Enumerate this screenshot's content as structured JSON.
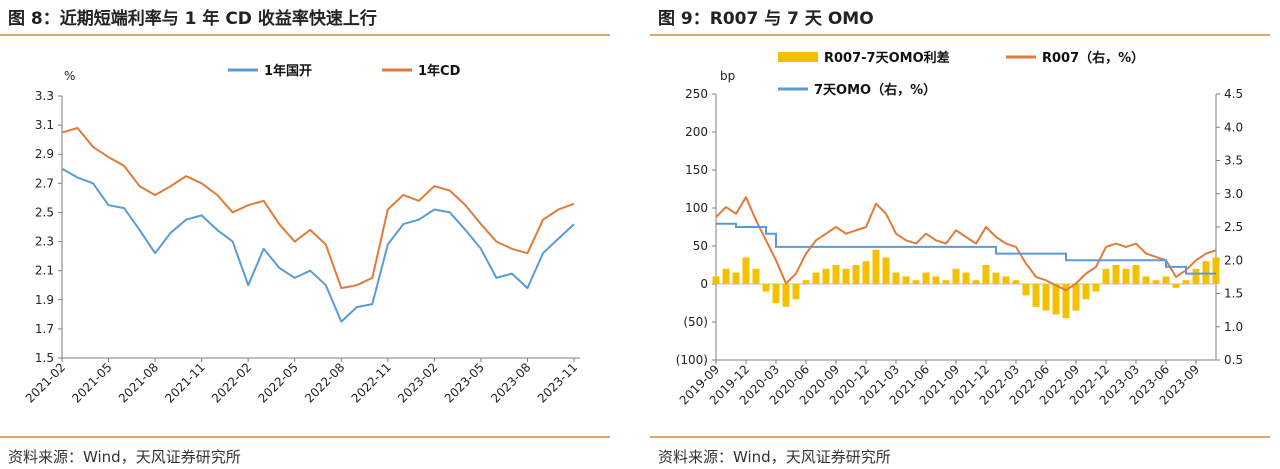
{
  "left_panel": {
    "title": "图 8：近期短端利率与 1 年 CD 收益率快速上行",
    "source": "资料来源：Wind，天风证券研究所"
  },
  "right_panel": {
    "title": "图 9：R007 与 7 天 OMO",
    "source": "资料来源：Wind，天风证券研究所"
  },
  "chart_data": [
    {
      "type": "line",
      "unit_label": "%",
      "ylim": [
        1.5,
        3.3
      ],
      "yticks": [
        "3.3",
        "3.1",
        "2.9",
        "2.7",
        "2.5",
        "2.3",
        "2.1",
        "1.9",
        "1.7",
        "1.5"
      ],
      "xticks": [
        "2021-02",
        "2021-05",
        "2021-08",
        "2021-11",
        "2022-02",
        "2022-05",
        "2022-08",
        "2022-11",
        "2023-02",
        "2023-05",
        "2023-08",
        "2023-11"
      ],
      "legend_position": "top",
      "series": [
        {
          "name": "1年国开",
          "color": "#5b9bd5",
          "points": [
            [
              "2021-02",
              2.8
            ],
            [
              "2021-03",
              2.74
            ],
            [
              "2021-04",
              2.7
            ],
            [
              "2021-05",
              2.55
            ],
            [
              "2021-06",
              2.53
            ],
            [
              "2021-07",
              2.38
            ],
            [
              "2021-08",
              2.22
            ],
            [
              "2021-09",
              2.36
            ],
            [
              "2021-10",
              2.45
            ],
            [
              "2021-11",
              2.48
            ],
            [
              "2021-12",
              2.38
            ],
            [
              "2022-01",
              2.3
            ],
            [
              "2022-02",
              2.0
            ],
            [
              "2022-03",
              2.25
            ],
            [
              "2022-04",
              2.12
            ],
            [
              "2022-05",
              2.05
            ],
            [
              "2022-06",
              2.1
            ],
            [
              "2022-07",
              2.0
            ],
            [
              "2022-08",
              1.75
            ],
            [
              "2022-09",
              1.85
            ],
            [
              "2022-10",
              1.87
            ],
            [
              "2022-11",
              2.28
            ],
            [
              "2022-12",
              2.42
            ],
            [
              "2023-01",
              2.45
            ],
            [
              "2023-02",
              2.52
            ],
            [
              "2023-03",
              2.5
            ],
            [
              "2023-04",
              2.38
            ],
            [
              "2023-05",
              2.25
            ],
            [
              "2023-06",
              2.05
            ],
            [
              "2023-07",
              2.08
            ],
            [
              "2023-08",
              1.98
            ],
            [
              "2023-09",
              2.22
            ],
            [
              "2023-10",
              2.32
            ],
            [
              "2023-11",
              2.42
            ]
          ]
        },
        {
          "name": "1年CD",
          "color": "#e07b39",
          "points": [
            [
              "2021-02",
              3.05
            ],
            [
              "2021-03",
              3.08
            ],
            [
              "2021-04",
              2.95
            ],
            [
              "2021-05",
              2.88
            ],
            [
              "2021-06",
              2.82
            ],
            [
              "2021-07",
              2.68
            ],
            [
              "2021-08",
              2.62
            ],
            [
              "2021-09",
              2.68
            ],
            [
              "2021-10",
              2.75
            ],
            [
              "2021-11",
              2.7
            ],
            [
              "2021-12",
              2.62
            ],
            [
              "2022-01",
              2.5
            ],
            [
              "2022-02",
              2.55
            ],
            [
              "2022-03",
              2.58
            ],
            [
              "2022-04",
              2.42
            ],
            [
              "2022-05",
              2.3
            ],
            [
              "2022-06",
              2.38
            ],
            [
              "2022-07",
              2.28
            ],
            [
              "2022-08",
              1.98
            ],
            [
              "2022-09",
              2.0
            ],
            [
              "2022-10",
              2.05
            ],
            [
              "2022-11",
              2.52
            ],
            [
              "2022-12",
              2.62
            ],
            [
              "2023-01",
              2.58
            ],
            [
              "2023-02",
              2.68
            ],
            [
              "2023-03",
              2.65
            ],
            [
              "2023-04",
              2.55
            ],
            [
              "2023-05",
              2.42
            ],
            [
              "2023-06",
              2.3
            ],
            [
              "2023-07",
              2.25
            ],
            [
              "2023-08",
              2.22
            ],
            [
              "2023-09",
              2.45
            ],
            [
              "2023-10",
              2.52
            ],
            [
              "2023-11",
              2.56
            ]
          ]
        }
      ]
    },
    {
      "type": "bar+line",
      "left_unit_label": "bp",
      "left_ylim": [
        -100,
        250
      ],
      "left_yticks": [
        "250",
        "200",
        "150",
        "100",
        "50",
        "0",
        "(50)",
        "(100)"
      ],
      "right_ylim": [
        0.5,
        4.5
      ],
      "right_yticks": [
        "4.5",
        "4.0",
        "3.5",
        "3.0",
        "2.5",
        "2.0",
        "1.5",
        "1.0",
        "0.5"
      ],
      "xticks": [
        "2019-09",
        "2019-12",
        "2020-03",
        "2020-06",
        "2020-09",
        "2020-12",
        "2021-03",
        "2021-06",
        "2021-09",
        "2021-12",
        "2022-03",
        "2022-06",
        "2022-09",
        "2022-12",
        "2023-03",
        "2023-06",
        "2023-09"
      ],
      "legend_position": "top",
      "series": [
        {
          "name": "R007-7天OMO利差",
          "axis": "left",
          "kind": "bar",
          "color": "#f5c000",
          "points": [
            [
              "2019-09",
              10
            ],
            [
              "2019-10",
              20
            ],
            [
              "2019-11",
              15
            ],
            [
              "2019-12",
              35
            ],
            [
              "2020-01",
              20
            ],
            [
              "2020-02",
              -10
            ],
            [
              "2020-03",
              -25
            ],
            [
              "2020-04",
              -30
            ],
            [
              "2020-05",
              -20
            ],
            [
              "2020-06",
              5
            ],
            [
              "2020-07",
              15
            ],
            [
              "2020-08",
              20
            ],
            [
              "2020-09",
              25
            ],
            [
              "2020-10",
              20
            ],
            [
              "2020-11",
              25
            ],
            [
              "2020-12",
              30
            ],
            [
              "2021-01",
              45
            ],
            [
              "2021-02",
              35
            ],
            [
              "2021-03",
              15
            ],
            [
              "2021-04",
              10
            ],
            [
              "2021-05",
              5
            ],
            [
              "2021-06",
              15
            ],
            [
              "2021-07",
              10
            ],
            [
              "2021-08",
              5
            ],
            [
              "2021-09",
              20
            ],
            [
              "2021-10",
              15
            ],
            [
              "2021-11",
              5
            ],
            [
              "2021-12",
              25
            ],
            [
              "2022-01",
              15
            ],
            [
              "2022-02",
              10
            ],
            [
              "2022-03",
              5
            ],
            [
              "2022-04",
              -15
            ],
            [
              "2022-05",
              -30
            ],
            [
              "2022-06",
              -35
            ],
            [
              "2022-07",
              -40
            ],
            [
              "2022-08",
              -45
            ],
            [
              "2022-09",
              -35
            ],
            [
              "2022-10",
              -20
            ],
            [
              "2022-11",
              -10
            ],
            [
              "2022-12",
              20
            ],
            [
              "2023-01",
              25
            ],
            [
              "2023-02",
              20
            ],
            [
              "2023-03",
              25
            ],
            [
              "2023-04",
              10
            ],
            [
              "2023-05",
              5
            ],
            [
              "2023-06",
              10
            ],
            [
              "2023-07",
              -5
            ],
            [
              "2023-08",
              5
            ],
            [
              "2023-09",
              20
            ],
            [
              "2023-10",
              30
            ],
            [
              "2023-11",
              35
            ]
          ]
        },
        {
          "name": "R007（右，%）",
          "axis": "right",
          "kind": "line",
          "color": "#e07b39",
          "points": [
            [
              "2019-09",
              2.65
            ],
            [
              "2019-10",
              2.8
            ],
            [
              "2019-11",
              2.7
            ],
            [
              "2019-12",
              2.95
            ],
            [
              "2020-01",
              2.6
            ],
            [
              "2020-02",
              2.3
            ],
            [
              "2020-03",
              2.0
            ],
            [
              "2020-04",
              1.65
            ],
            [
              "2020-05",
              1.8
            ],
            [
              "2020-06",
              2.1
            ],
            [
              "2020-07",
              2.3
            ],
            [
              "2020-08",
              2.4
            ],
            [
              "2020-09",
              2.5
            ],
            [
              "2020-10",
              2.4
            ],
            [
              "2020-11",
              2.45
            ],
            [
              "2020-12",
              2.5
            ],
            [
              "2021-01",
              2.85
            ],
            [
              "2021-02",
              2.7
            ],
            [
              "2021-03",
              2.4
            ],
            [
              "2021-04",
              2.3
            ],
            [
              "2021-05",
              2.25
            ],
            [
              "2021-06",
              2.4
            ],
            [
              "2021-07",
              2.3
            ],
            [
              "2021-08",
              2.25
            ],
            [
              "2021-09",
              2.45
            ],
            [
              "2021-10",
              2.35
            ],
            [
              "2021-11",
              2.25
            ],
            [
              "2021-12",
              2.5
            ],
            [
              "2022-01",
              2.35
            ],
            [
              "2022-02",
              2.25
            ],
            [
              "2022-03",
              2.2
            ],
            [
              "2022-04",
              1.95
            ],
            [
              "2022-05",
              1.75
            ],
            [
              "2022-06",
              1.7
            ],
            [
              "2022-07",
              1.62
            ],
            [
              "2022-08",
              1.55
            ],
            [
              "2022-09",
              1.65
            ],
            [
              "2022-10",
              1.8
            ],
            [
              "2022-11",
              1.9
            ],
            [
              "2022-12",
              2.2
            ],
            [
              "2023-01",
              2.25
            ],
            [
              "2023-02",
              2.2
            ],
            [
              "2023-03",
              2.25
            ],
            [
              "2023-04",
              2.1
            ],
            [
              "2023-05",
              2.05
            ],
            [
              "2023-06",
              2.0
            ],
            [
              "2023-07",
              1.75
            ],
            [
              "2023-08",
              1.85
            ],
            [
              "2023-09",
              2.0
            ],
            [
              "2023-10",
              2.1
            ],
            [
              "2023-11",
              2.15
            ]
          ]
        },
        {
          "name": "7天OMO（右，%）",
          "axis": "right",
          "kind": "step",
          "color": "#5b9bd5",
          "points": [
            [
              "2019-09",
              2.55
            ],
            [
              "2019-11",
              2.5
            ],
            [
              "2020-02",
              2.4
            ],
            [
              "2020-03",
              2.2
            ],
            [
              "2022-01",
              2.1
            ],
            [
              "2022-08",
              2.0
            ],
            [
              "2023-06",
              1.9
            ],
            [
              "2023-08",
              1.8
            ],
            [
              "2023-11",
              1.8
            ]
          ]
        }
      ]
    }
  ]
}
